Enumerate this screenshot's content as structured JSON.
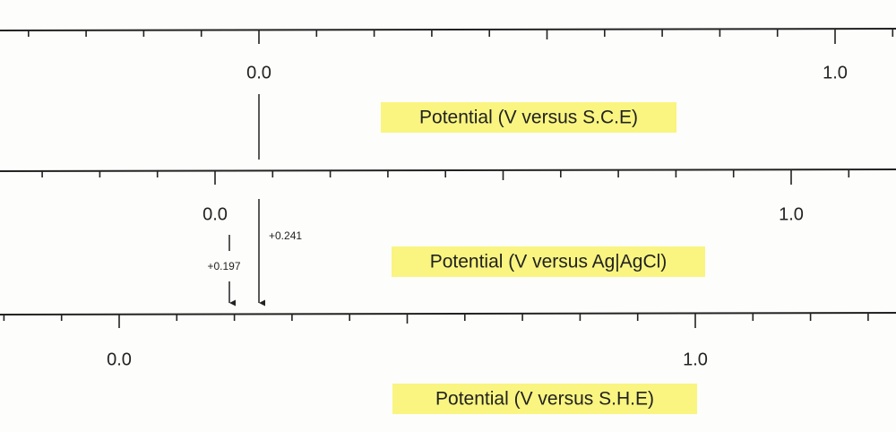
{
  "scales": [
    {
      "ticks": [
        "0.0",
        "1.0"
      ],
      "label": "Potential (V versus S.C.E)"
    },
    {
      "ticks": [
        "0.0",
        "1.0"
      ],
      "label": "Potential (V versus Ag|AgCl)"
    },
    {
      "ticks": [
        "0.0",
        "1.0"
      ],
      "label": "Potential (V versus S.H.E)"
    }
  ],
  "offsets": [
    "+0.241",
    "+0.197"
  ]
}
